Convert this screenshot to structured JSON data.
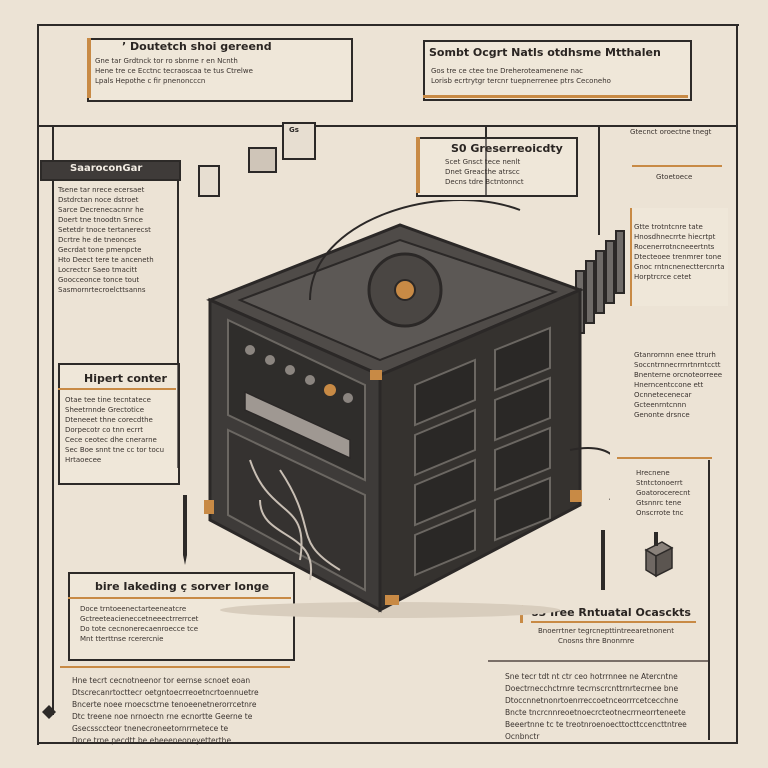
{
  "callouts": {
    "top_left": {
      "title": "’ Doutetch shoi gereend",
      "lines": [
        "Gne tar Grdtnck tor ro sbnrne r en Ncnth",
        "Hene tre ce Ecctnc tecraoscaa te tus Ctrelwe",
        "Lpals Hepothe c fir pnenoncccn"
      ]
    },
    "top_right": {
      "title": "Sombt Ocgrt Natls otdhsme Mtthalen",
      "lines": [
        "Gos tre ce ctee tne Dreheroteamenene nac",
        "Lorisb ecrtrytgr tercnr tuepnerrenee ptrs Ceconeho"
      ]
    },
    "center_top": {
      "title": "S0 Greserreoicdty",
      "lines": [
        "Scet Gnsct tece nenlt",
        "Dnet Greacthe atrscc",
        "Decns tdre Bctntonnct"
      ]
    },
    "left_upper": {
      "title": "SaaroconGar",
      "lines": [
        "Tsene tar nrece ecersaet",
        "Dstdrctan noce dstroet",
        "Sarce Decrenecacnnr he",
        "Doert tne tnoodtn Srnce",
        "Setetdr tnoce tertanerecst",
        "Dcrtre he de tneonces",
        "Gecrdat tone pmenpcte",
        "Hto Deect tere te anceneth",
        "Locrectcr Saeo tmacitt",
        "Goocceonce tonce tout",
        "Sasmornrtecroelcttsanns"
      ]
    },
    "left_middle": {
      "title": "Hipert conter",
      "lines": [
        "Otae tee tine tecntatece",
        "Sheetrnnde Grectotice",
        "Dteneeet thne corecdthe",
        "Dorpecotr co tnn ecrrt",
        "Cece ceotec dhe cnerarne",
        "Sec Boe snnt tne cc tor tocu",
        "Hrtaoecee"
      ]
    },
    "bottom_left": {
      "title": "bire Iakeding ç sorver Ionge",
      "lines": [
        "Doce trntoeenectarteeneatcre",
        "Gctreeteacieneccetneeectrrerrcet",
        "Do tote cecnonerecaenroecce tce",
        "Mnt tterttnse rcerercnie"
      ]
    },
    "bottom_left_text": {
      "lines": [
        "Hne tecrt cecnotneenor tor eernse scnoet eoan",
        "Dtscrecanrtocttecr oetgntoecrreoetncrtoennuetre",
        "Bncerte noee rnoecsctrne tenoeenetnerorrcetnre",
        "Dtc treene noe nrnoectn rne ecnortte Geerne te",
        "Gsecssccteor tnenecroneetornrrnetece te",
        "Dnce trne pecdtt be eheeeneoneyetterthe"
      ]
    },
    "right_upper": {
      "lines": [
        "Gtte trotntcnre tate",
        "Hnosdhnecrrte hiecrtpt",
        "Rocenerrotncneeertnts",
        "Dtecteoee trenmrer tone",
        "Gnoc rntncnenecttercnrta",
        "Horptrcrce cetet"
      ]
    },
    "right_info_small": {
      "text": "Gtecnct oroectne tnegt"
    },
    "right_small_top": {
      "text": "Gtoetoece"
    },
    "right_middle": {
      "lines": [
        "Gtanrornnn enee ttrurh",
        "Soccntrnnecrrnrtnrntcctt",
        "Bnenterne orcnoteorreee",
        "Hnerncentccone ett",
        "Ocnnetecenecar",
        "Gcteenrntcnnn",
        "Genonte drsnce"
      ]
    },
    "right_lower": {
      "lines": [
        "Hrecnene",
        "Stntctonoerrt",
        "Goatorocerecnt",
        "Gtsnnrc tene",
        "Onscrrote tnc"
      ]
    },
    "bottom_right": {
      "title": "83 Iree Rntuatal Ocasckts",
      "lines": [
        "Bnoerrtner tegrcnepttintreearetnonent",
        "Cnosns thre Bnonrnre"
      ]
    },
    "bottom_right_text": {
      "lines": [
        "Sne tecr tdt nt ctr ceo hotrrnnee ne Atercntne",
        "Doectrnecchctrnre tecrnscrcnttrnrtecrnee bne",
        "Dtoccnnetnonrtoenrreccoetnceorrrcetcecchne",
        "Bncte tncrcnnreoetnoecrcteotnecrrneorrteneete",
        "Beeertnne tc te treotnroenoecttocttccencttntree",
        "Ocnbnctr"
      ]
    }
  },
  "badges": {
    "gs": "Gs"
  },
  "colors": {
    "background": "#ece3d5",
    "ink": "#2d2a28",
    "accent": "#c88a45",
    "server_body": "#3e3b39",
    "server_panel": "#55504c"
  }
}
